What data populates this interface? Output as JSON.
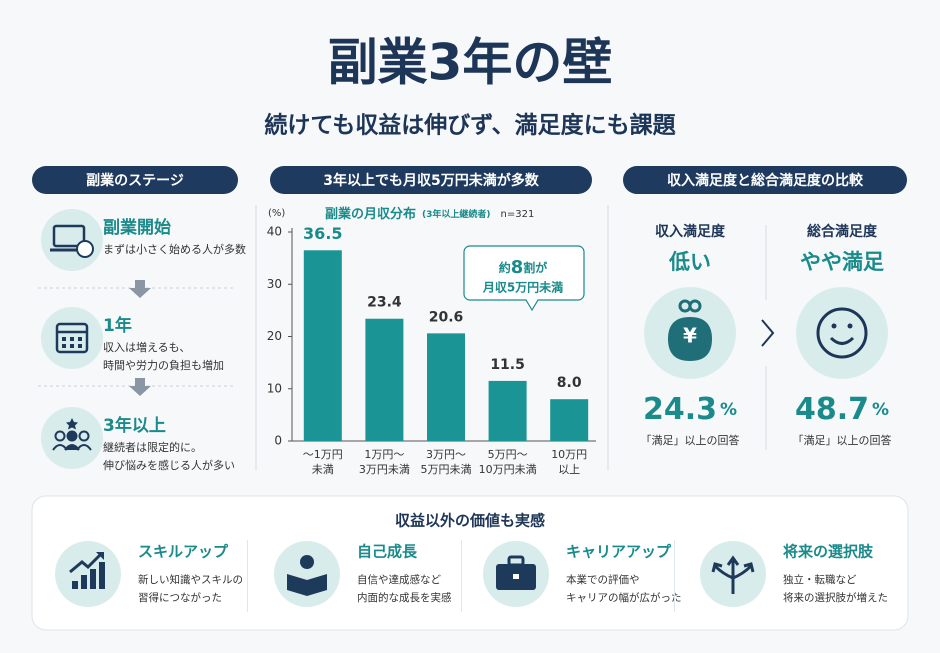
{
  "header": {
    "title": "副業3年の壁",
    "subtitle": "続けても収益は伸びず、満足度にも課題"
  },
  "stages": {
    "heading": "副業のステージ",
    "items": [
      {
        "title": "副業開始",
        "text": [
          "まずは小さく始める人が多数"
        ]
      },
      {
        "title": "1年",
        "text": [
          "収入は増えるも、",
          "時間や労力の負担も増加"
        ]
      },
      {
        "title": "3年以上",
        "text": [
          "継続者は限定的に。",
          "伸び悩みを感じる人が多い"
        ]
      }
    ]
  },
  "chart_heading": "3年以上でも月収5万円未満が多数",
  "chart_data": {
    "type": "bar",
    "title": "副業の月収分布",
    "subtitle": "(3年以上継続者)",
    "note": "n=321",
    "y_unit": "(%)",
    "categories": [
      [
        "〜1万円",
        "未満"
      ],
      [
        "1万円〜",
        "3万円未満"
      ],
      [
        "3万円〜",
        "5万円未満"
      ],
      [
        "5万円〜",
        "10万円未満"
      ],
      [
        "10万円",
        "以上"
      ]
    ],
    "values": [
      36.5,
      23.4,
      20.6,
      11.5,
      8.0
    ],
    "value_labels": [
      "36.5",
      "23.4",
      "20.6",
      "11.5",
      "8.0"
    ],
    "color": "#1a9494",
    "ylim": [
      0,
      40
    ],
    "yticks": [
      0,
      10,
      20,
      30,
      40
    ],
    "callout": {
      "line1": [
        "約",
        "8",
        "割が"
      ],
      "line2": "月収5万円未満"
    }
  },
  "satisfaction": {
    "heading": "収入満足度と総合満足度の比較",
    "items": [
      {
        "label": "収入満足度",
        "verdict": "低い",
        "value": 24.3,
        "unit": "%",
        "note": "「満足」以上の回答"
      },
      {
        "label": "総合満足度",
        "verdict": "やや満足",
        "value": 48.7,
        "unit": "%",
        "note": "「満足」以上の回答"
      }
    ]
  },
  "values_panel": {
    "heading": "収益以外の価値も実感",
    "items": [
      {
        "title": "スキルアップ",
        "text": [
          "新しい知識やスキルの",
          "習得につながった"
        ]
      },
      {
        "title": "自己成長",
        "text": [
          "自信や達成感など",
          "内面的な成長を実感"
        ]
      },
      {
        "title": "キャリアアップ",
        "text": [
          "本業での評価や",
          "キャリアの幅が広がった"
        ]
      },
      {
        "title": "将来の選択肢",
        "text": [
          "独立・転職など",
          "将来の選択肢が増えた"
        ]
      }
    ]
  }
}
